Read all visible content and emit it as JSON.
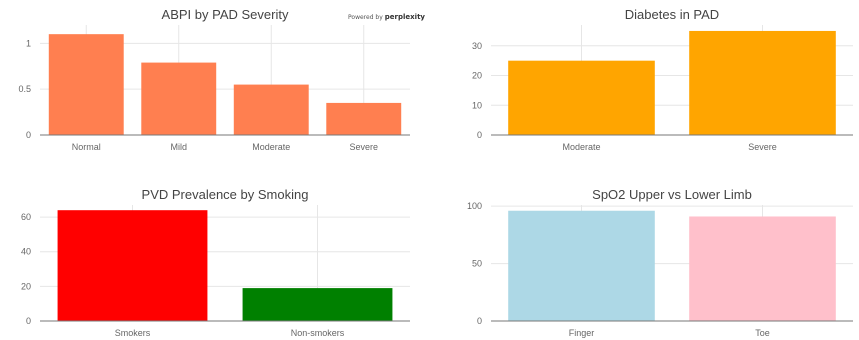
{
  "branding": {
    "prefix": "Powered by",
    "name": "perplexity"
  },
  "chart_data": [
    {
      "type": "bar",
      "title": "ABPI by PAD Severity",
      "categories": [
        "Normal",
        "Mild",
        "Moderate",
        "Severe"
      ],
      "values": [
        1.1,
        0.79,
        0.55,
        0.35
      ],
      "colors": [
        "#FF7F50",
        "#FF7F50",
        "#FF7F50",
        "#FF7F50"
      ],
      "ylim": [
        0,
        1.2
      ],
      "yticks": [
        0,
        0.5,
        1
      ],
      "ytick_labels": [
        "0",
        "0.5",
        "1"
      ],
      "grid": true
    },
    {
      "type": "bar",
      "title": "Diabetes in PAD",
      "categories": [
        "Moderate",
        "Severe"
      ],
      "values": [
        25,
        35
      ],
      "colors": [
        "#FFA500",
        "#FFA500"
      ],
      "ylim": [
        0,
        37
      ],
      "yticks": [
        0,
        10,
        20,
        30
      ],
      "ytick_labels": [
        "0",
        "10",
        "20",
        "30"
      ],
      "grid": true
    },
    {
      "type": "bar",
      "title": "PVD Prevalence by Smoking",
      "categories": [
        "Smokers",
        "Non-smokers"
      ],
      "values": [
        64,
        19
      ],
      "colors": [
        "#FF0000",
        "#008000"
      ],
      "ylim": [
        0,
        67
      ],
      "yticks": [
        0,
        20,
        40,
        60
      ],
      "ytick_labels": [
        "0",
        "20",
        "40",
        "60"
      ],
      "grid": true
    },
    {
      "type": "bar",
      "title": "SpO2 Upper vs Lower Limb",
      "categories": [
        "Finger",
        "Toe"
      ],
      "values": [
        96,
        91
      ],
      "colors": [
        "#ADD8E6",
        "#FFC0CB"
      ],
      "ylim": [
        0,
        101
      ],
      "yticks": [
        0,
        50,
        100
      ],
      "ytick_labels": [
        "0",
        "50",
        "100"
      ],
      "grid": true
    }
  ]
}
